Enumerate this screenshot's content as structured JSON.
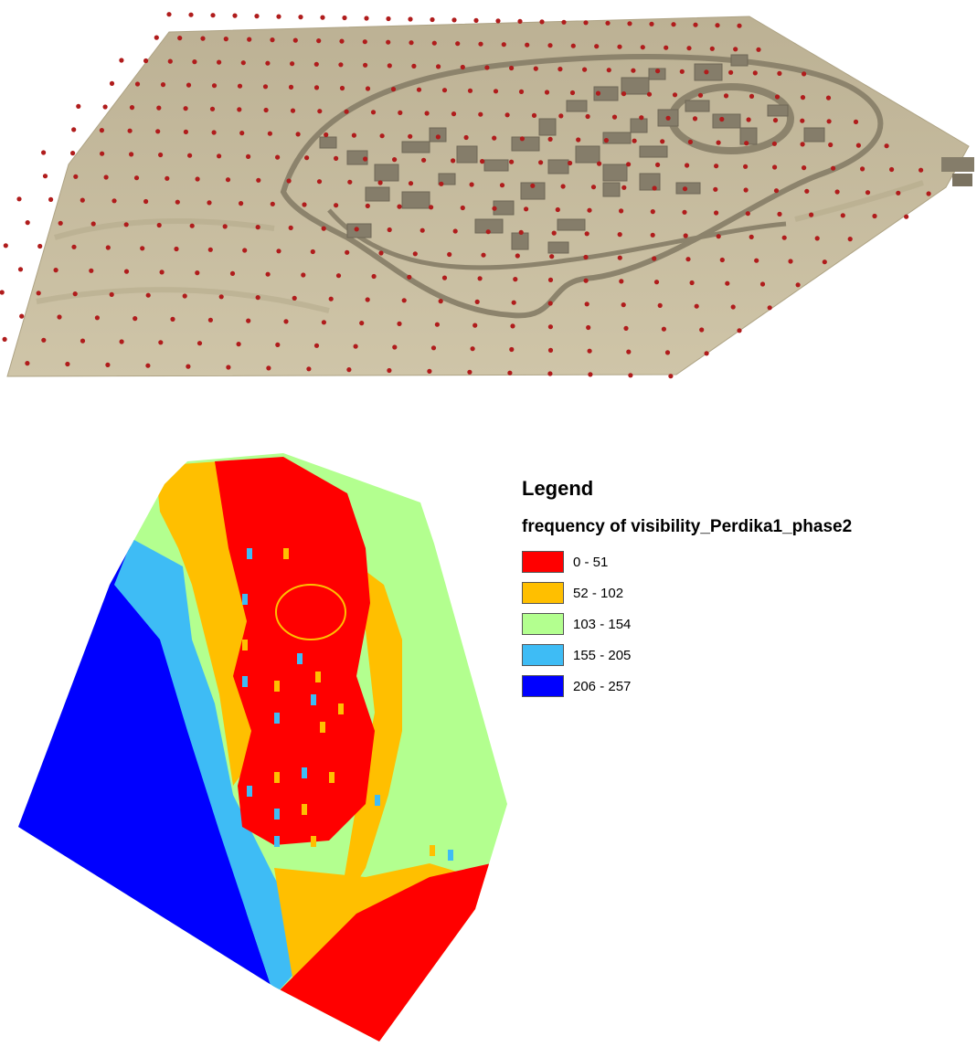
{
  "terrain": {
    "surface_color": "#c4b89a",
    "point_color": "#b01c1c",
    "building_color": "#857d6a"
  },
  "legend": {
    "title": "Legend",
    "subtitle": "frequency of visibility_Perdika1_phase2",
    "items": [
      {
        "label": "0 - 51",
        "color": "#ff0000"
      },
      {
        "label": "52 - 102",
        "color": "#ffbf00"
      },
      {
        "label": "103 - 154",
        "color": "#b3ff8f"
      },
      {
        "label": "155 - 205",
        "color": "#3ebcf5"
      },
      {
        "label": "206 - 257",
        "color": "#0000ff"
      }
    ]
  }
}
